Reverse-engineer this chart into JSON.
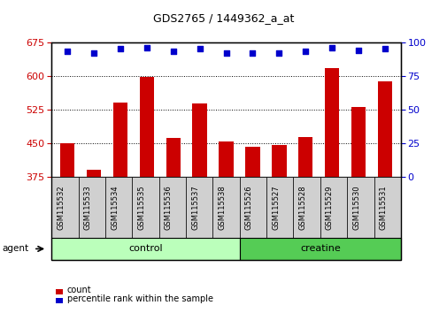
{
  "title": "GDS2765 / 1449362_a_at",
  "categories": [
    "GSM115532",
    "GSM115533",
    "GSM115534",
    "GSM115535",
    "GSM115536",
    "GSM115537",
    "GSM115538",
    "GSM115526",
    "GSM115527",
    "GSM115528",
    "GSM115529",
    "GSM115530",
    "GSM115531"
  ],
  "counts": [
    450,
    390,
    540,
    598,
    462,
    538,
    453,
    443,
    445,
    463,
    618,
    530,
    588
  ],
  "percentiles": [
    93,
    92,
    95,
    96,
    93,
    95,
    92,
    92,
    92,
    93,
    96,
    94,
    95
  ],
  "bar_color": "#cc0000",
  "dot_color": "#0000cc",
  "ylim_left": [
    375,
    675
  ],
  "ylim_right": [
    0,
    100
  ],
  "yticks_left": [
    375,
    450,
    525,
    600,
    675
  ],
  "yticks_right": [
    0,
    25,
    50,
    75,
    100
  ],
  "grid_values": [
    450,
    525,
    600
  ],
  "groups": [
    {
      "label": "control",
      "start": 0,
      "end": 7,
      "color": "#bbffbb"
    },
    {
      "label": "creatine",
      "start": 7,
      "end": 13,
      "color": "#55cc55"
    }
  ],
  "agent_label": "agent",
  "legend": [
    {
      "label": "count",
      "color": "#cc0000"
    },
    {
      "label": "percentile rank within the sample",
      "color": "#0000cc"
    }
  ],
  "tick_label_color_left": "#cc0000",
  "tick_label_color_right": "#0000cc",
  "bar_width": 0.55,
  "fig_width": 5.06,
  "fig_height": 3.54,
  "dpi": 100
}
